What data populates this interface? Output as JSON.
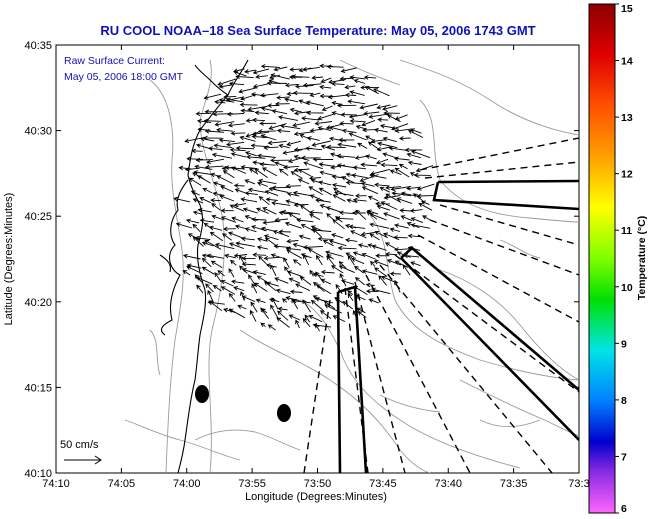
{
  "title": "RU COOL  NOAA–18  Sea Surface Temperature:  May 05, 2006 1743 GMT",
  "legend": {
    "line1": "Raw Surface Current:",
    "line2": "May 05, 2006 18:00 GMT",
    "scale_label": "50 cm/s"
  },
  "axes": {
    "xlabel": "Longitude (Degrees:Minutes)",
    "ylabel": "Latitude (Degrees:Minutes)",
    "xticks": [
      "74:10",
      "74:05",
      "74:00",
      "73:55",
      "73:50",
      "73:45",
      "73:40",
      "73:35",
      "73:3"
    ],
    "yticks": [
      "40:35",
      "40:30",
      "40:25",
      "40:20",
      "40:15",
      "40:10"
    ]
  },
  "colorbar": {
    "label": "Temperature (°C)",
    "ticks": [
      "15",
      "14",
      "13",
      "12",
      "11",
      "10",
      "9",
      "8",
      "7",
      "6"
    ],
    "colors": [
      "#8b0000",
      "#ff0000",
      "#ff8c00",
      "#ffd700",
      "#adff2f",
      "#00e000",
      "#00e5e5",
      "#0080ff",
      "#0000cd",
      "#ff66ff"
    ]
  },
  "map_colors": {
    "coast": "#000000",
    "bathymetry": "#9a9a9a",
    "vectors": "#000000"
  }
}
